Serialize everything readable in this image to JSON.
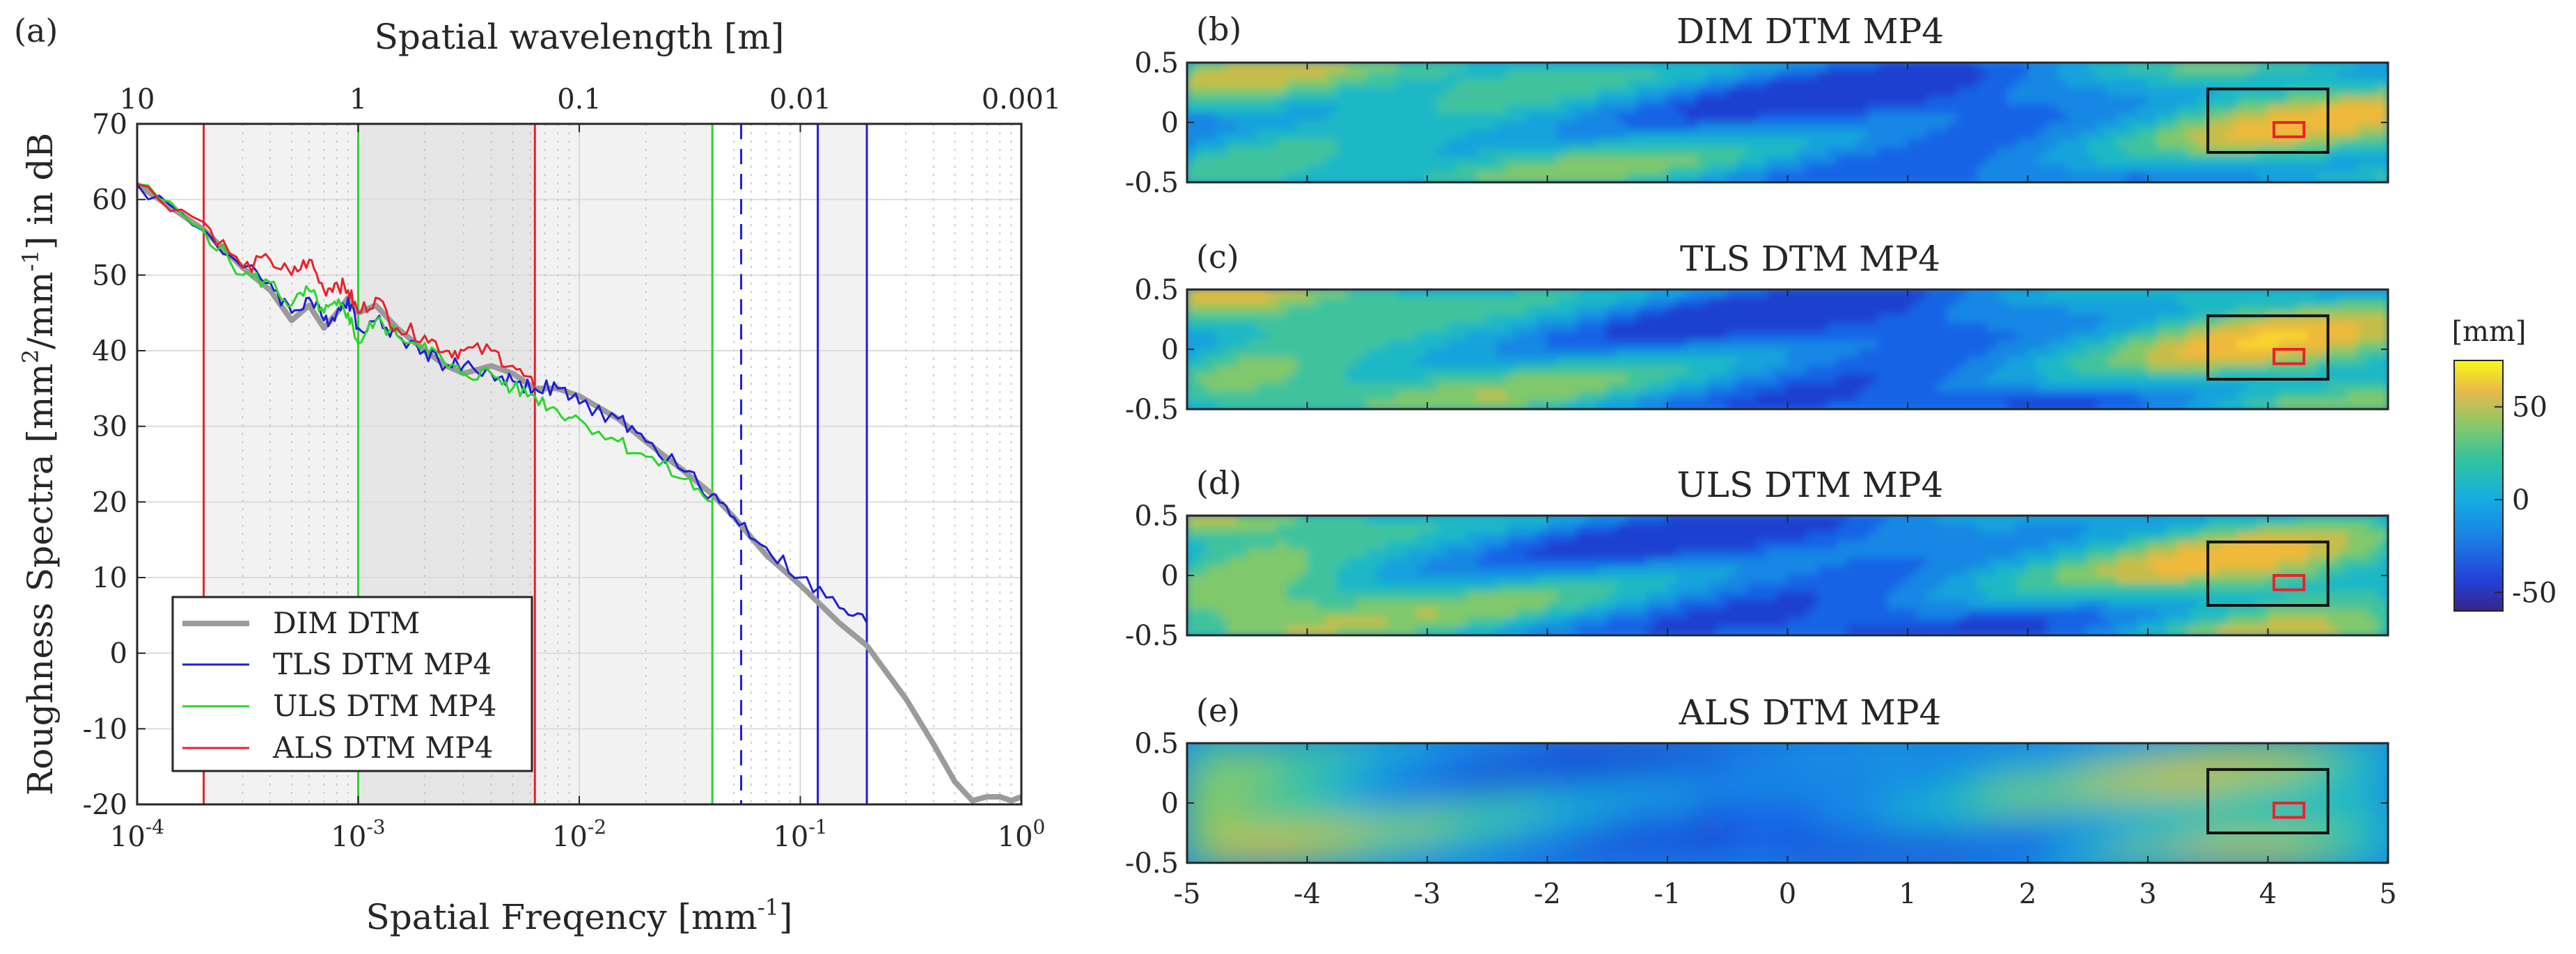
{
  "chart_data": [
    {
      "type": "line",
      "panel_label": "(a)",
      "xlabel_bottom": "Spatial Freqency [mm",
      "xlabel_bottom_sup": "-1",
      "xlabel_bottom_tail": "]",
      "xlabel_top": "Spatial wavelength [m]",
      "ylabel_pre": "Roughness Spectra [mm",
      "ylabel_sup1": "2",
      "ylabel_mid": "/mm",
      "ylabel_sup2": "-1",
      "ylabel_tail": "] in dB",
      "xscale": "log",
      "xlim": [
        0.0001,
        1
      ],
      "ylim": [
        -20,
        70
      ],
      "yticks": [
        -20,
        -10,
        0,
        10,
        20,
        30,
        40,
        50,
        60,
        70
      ],
      "xticks": [
        0.0001,
        0.001,
        0.01,
        0.1,
        1
      ],
      "xtick_bases": [
        "10",
        "10",
        "10",
        "10",
        "10"
      ],
      "xtick_exps": [
        "-4",
        "-3",
        "-2",
        "-1",
        "0"
      ],
      "top_ticks": [
        "10",
        "1",
        "0.1",
        "0.01",
        "0.001"
      ],
      "legend_position": "bottom-left",
      "shaded_bands": [
        {
          "x0": 0.0002,
          "x1": 0.001,
          "color": "#f2f2f2"
        },
        {
          "x0": 0.001,
          "x1": 0.0063,
          "color": "#e6e6e6"
        },
        {
          "x0": 0.0063,
          "x1": 0.04,
          "color": "#f2f2f2"
        },
        {
          "x0": 0.12,
          "x1": 0.2,
          "color": "#f2f2f2"
        }
      ],
      "vertical_lines": [
        {
          "x": 0.0002,
          "color": "#e8222a",
          "dash": false
        },
        {
          "x": 0.0063,
          "color": "#e8222a",
          "dash": false
        },
        {
          "x": 0.001,
          "color": "#2bd52b",
          "dash": false
        },
        {
          "x": 0.04,
          "color": "#2bd52b",
          "dash": false
        },
        {
          "x": 0.054,
          "color": "#1f1fd6",
          "dash": true
        },
        {
          "x": 0.12,
          "color": "#1f1fd6",
          "dash": false
        },
        {
          "x": 0.2,
          "color": "#1f1fd6",
          "dash": false
        }
      ],
      "series": [
        {
          "name": "DIM DTM",
          "color": "#9b9b9b",
          "width": 8,
          "x": [
            0.0001,
            0.0002,
            0.0003,
            0.0004,
            0.0005,
            0.0006,
            0.0007,
            0.0008,
            0.0009,
            0.001,
            0.0012,
            0.0015,
            0.002,
            0.0025,
            0.003,
            0.004,
            0.005,
            0.0063,
            0.008,
            0.01,
            0.015,
            0.02,
            0.03,
            0.04,
            0.05,
            0.07,
            0.1,
            0.15,
            0.2,
            0.3,
            0.4,
            0.5,
            0.6,
            0.7,
            0.8,
            0.9,
            1.0
          ],
          "y": [
            62,
            56,
            51,
            48,
            44,
            46,
            43,
            45,
            47,
            45,
            46,
            43,
            40,
            38,
            37,
            38,
            37,
            35,
            35,
            34,
            31,
            28,
            24,
            21,
            18,
            13,
            9,
            4,
            1,
            -6,
            -12,
            -17,
            -19.5,
            -19,
            -19,
            -19.5,
            -19
          ]
        },
        {
          "name": "TLS DTM MP4",
          "color": "#1f1fd6",
          "width": 3,
          "x": [
            0.0001,
            0.0002,
            0.0003,
            0.0004,
            0.0005,
            0.0006,
            0.0007,
            0.0008,
            0.0009,
            0.001,
            0.0012,
            0.0015,
            0.002,
            0.0025,
            0.003,
            0.004,
            0.005,
            0.0063,
            0.008,
            0.01,
            0.015,
            0.02,
            0.03,
            0.04,
            0.05,
            0.07,
            0.1,
            0.15,
            0.2
          ],
          "y": [
            62,
            56,
            51,
            49,
            45,
            47,
            44,
            45,
            47,
            43,
            44,
            42,
            40,
            38,
            38,
            37,
            36,
            35,
            35,
            33,
            31,
            28,
            24,
            21,
            18,
            14,
            10,
            6,
            4
          ]
        },
        {
          "name": "ULS DTM MP4",
          "color": "#2bd52b",
          "width": 3,
          "x": [
            0.0001,
            0.0002,
            0.0003,
            0.0004,
            0.0005,
            0.0006,
            0.0007,
            0.0008,
            0.0009,
            0.001,
            0.0012,
            0.0015,
            0.002,
            0.0025,
            0.003,
            0.004,
            0.005,
            0.0063,
            0.008,
            0.01,
            0.015,
            0.02,
            0.03,
            0.04
          ],
          "y": [
            62,
            56,
            50,
            49,
            46,
            48,
            45,
            46,
            45,
            41,
            44,
            42,
            41,
            38,
            37,
            37,
            35,
            34,
            32,
            31,
            28,
            26,
            23,
            20
          ]
        },
        {
          "name": "ALS DTM MP4",
          "color": "#e8222a",
          "width": 3,
          "x": [
            0.0001,
            0.0002,
            0.0003,
            0.0004,
            0.0005,
            0.0006,
            0.0007,
            0.0008,
            0.0009,
            0.001,
            0.0012,
            0.0015,
            0.002,
            0.0025,
            0.003,
            0.004,
            0.005,
            0.0063
          ],
          "y": [
            62,
            57,
            51,
            52,
            50,
            52,
            48,
            49,
            48,
            45,
            47,
            43,
            42,
            40,
            40,
            40,
            38,
            35
          ]
        }
      ]
    },
    {
      "type": "heatmap",
      "panels": [
        {
          "tag": "(b)",
          "title": "DIM DTM MP4"
        },
        {
          "tag": "(c)",
          "title": "TLS DTM MP4"
        },
        {
          "tag": "(d)",
          "title": "ULS DTM MP4"
        },
        {
          "tag": "(e)",
          "title": "ALS DTM MP4"
        }
      ],
      "xlim": [
        -5,
        5
      ],
      "ylim": [
        -0.5,
        0.5
      ],
      "xticks": [
        "-5",
        "-4",
        "-3",
        "-2",
        "-1",
        "0",
        "1",
        "2",
        "3",
        "4",
        "5"
      ],
      "yticks": [
        "0.5",
        "0",
        "-0.5"
      ],
      "black_box": {
        "x0": 3.5,
        "x1": 4.5,
        "y0": -0.25,
        "y1": 0.28
      },
      "red_box": {
        "x0": 4.05,
        "x1": 4.3,
        "y0": -0.12,
        "y1": 0.0
      },
      "colorbar": {
        "label": "[mm]",
        "min": -60,
        "max": 75,
        "ticks": [
          "50",
          "0",
          "-50"
        ],
        "tick_values": [
          50,
          0,
          -50
        ]
      }
    }
  ]
}
